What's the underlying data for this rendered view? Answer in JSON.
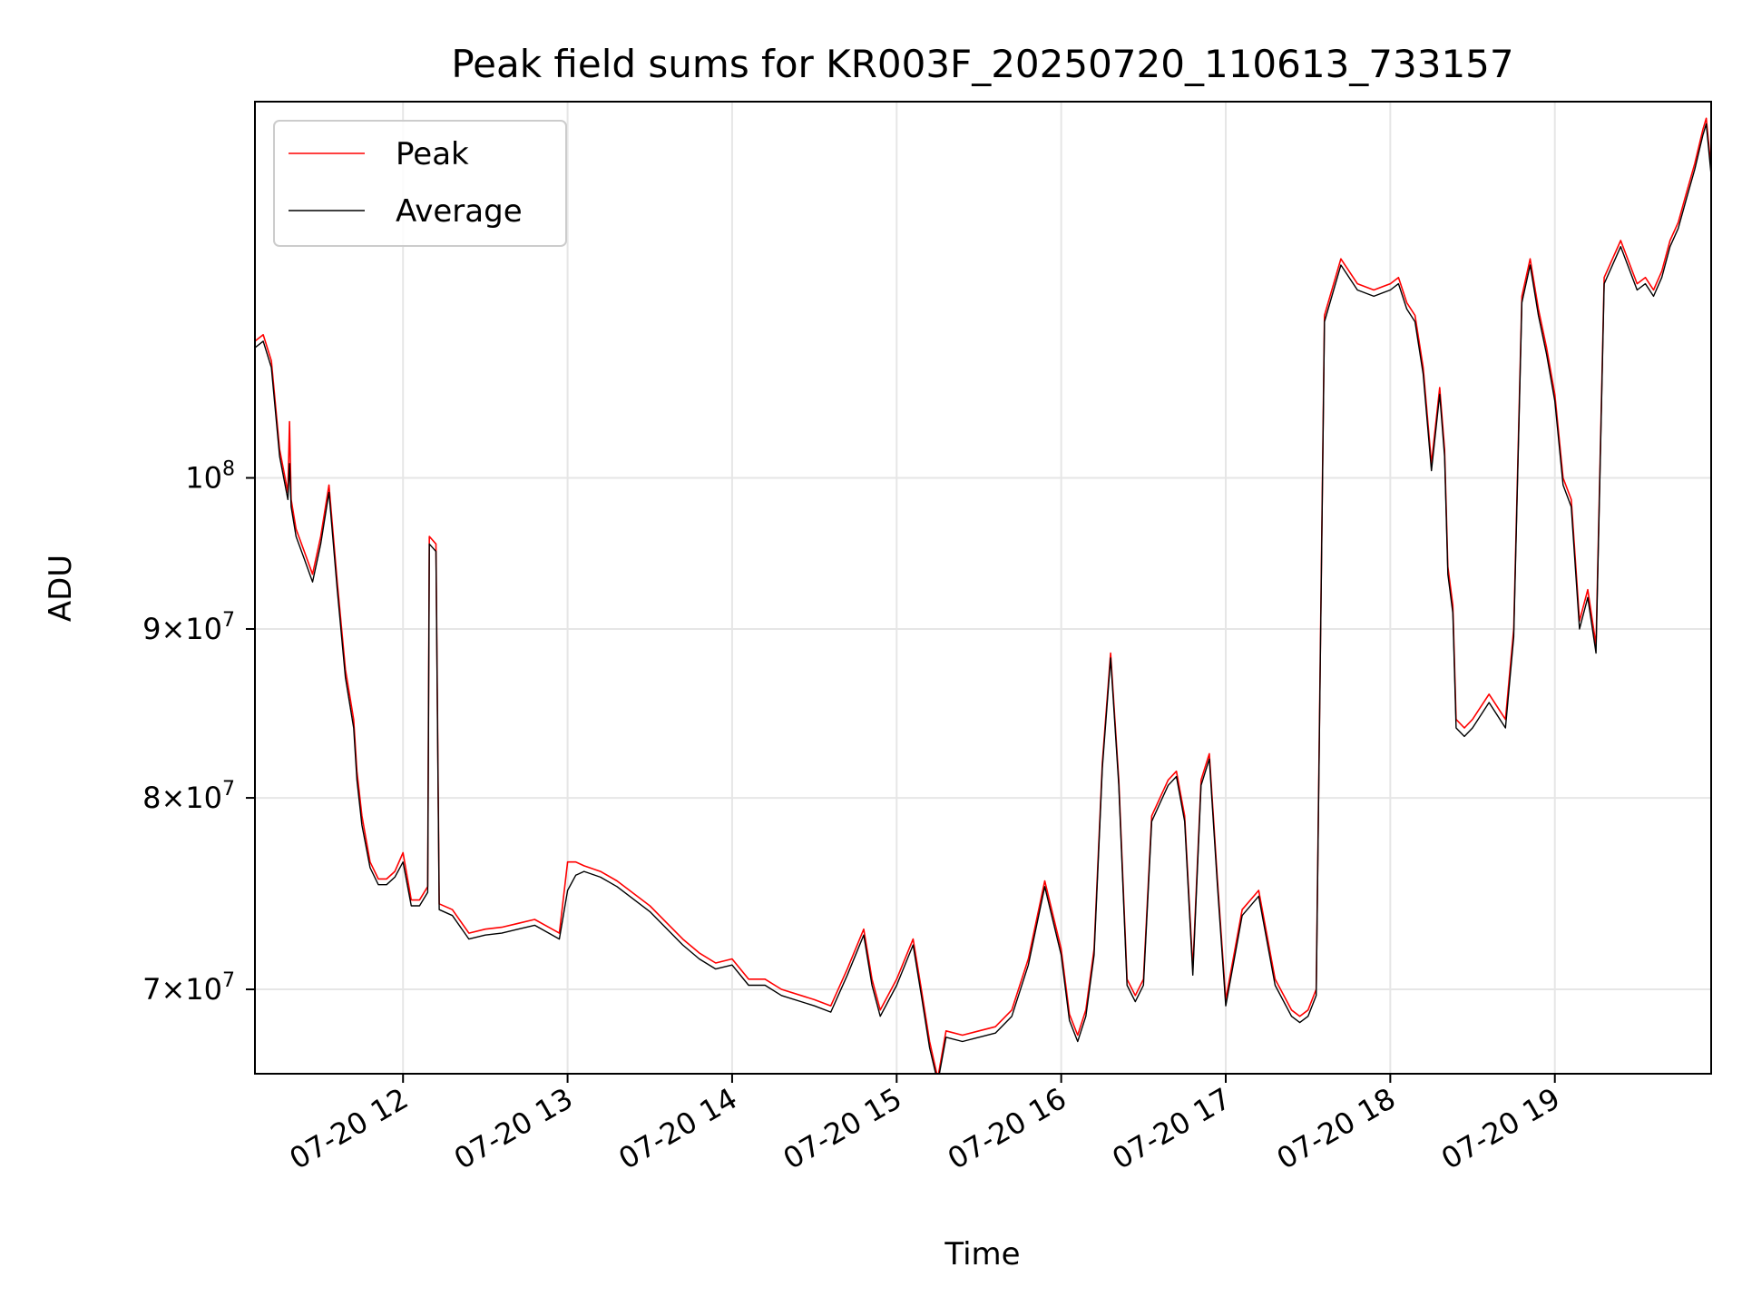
{
  "chart_data": {
    "type": "line",
    "title": "Peak field sums for KR003F_20250720_110613_733157",
    "xlabel": "Time",
    "ylabel": "ADU",
    "x_unit": "hours (07-20)",
    "xlim": [
      11.1,
      19.95
    ],
    "ylim": [
      66000000,
      130000000
    ],
    "yscale": "log",
    "grid": true,
    "legend_position": "top-left",
    "x_ticks": [
      {
        "value": 12,
        "label": "07-20 12"
      },
      {
        "value": 13,
        "label": "07-20 13"
      },
      {
        "value": 14,
        "label": "07-20 14"
      },
      {
        "value": 15,
        "label": "07-20 15"
      },
      {
        "value": 16,
        "label": "07-20 16"
      },
      {
        "value": 17,
        "label": "07-20 17"
      },
      {
        "value": 18,
        "label": "07-20 18"
      },
      {
        "value": 19,
        "label": "07-20 19"
      }
    ],
    "y_ticks": [
      {
        "value": 70000000,
        "mant": "7",
        "exp": "7"
      },
      {
        "value": 80000000,
        "mant": "8",
        "exp": "7"
      },
      {
        "value": 90000000,
        "mant": "9",
        "exp": "7"
      },
      {
        "value": 100000000,
        "mant": "",
        "exp": "8"
      }
    ],
    "series": [
      {
        "name": "Peak",
        "color": "#ff0000",
        "x": [
          11.1,
          11.15,
          11.2,
          11.25,
          11.3,
          11.31,
          11.32,
          11.35,
          11.4,
          11.45,
          11.5,
          11.55,
          11.6,
          11.65,
          11.7,
          11.72,
          11.75,
          11.8,
          11.85,
          11.9,
          11.95,
          12.0,
          12.05,
          12.1,
          12.15,
          12.16,
          12.2,
          12.22,
          12.3,
          12.4,
          12.5,
          12.6,
          12.7,
          12.8,
          12.95,
          13.0,
          13.05,
          13.1,
          13.2,
          13.3,
          13.5,
          13.7,
          13.8,
          13.9,
          14.0,
          14.1,
          14.2,
          14.3,
          14.5,
          14.6,
          14.7,
          14.8,
          14.85,
          14.9,
          15.0,
          15.1,
          15.15,
          15.2,
          15.25,
          15.3,
          15.4,
          15.5,
          15.6,
          15.7,
          15.8,
          15.9,
          16.0,
          16.05,
          16.1,
          16.15,
          16.2,
          16.25,
          16.3,
          16.35,
          16.4,
          16.45,
          16.5,
          16.55,
          16.6,
          16.65,
          16.7,
          16.75,
          16.8,
          16.85,
          16.9,
          16.95,
          17.0,
          17.1,
          17.2,
          17.3,
          17.4,
          17.45,
          17.5,
          17.55,
          17.6,
          17.7,
          17.8,
          17.9,
          18.0,
          18.05,
          18.1,
          18.15,
          18.2,
          18.25,
          18.3,
          18.33,
          18.35,
          18.38,
          18.4,
          18.45,
          18.5,
          18.6,
          18.7,
          18.75,
          18.8,
          18.85,
          18.9,
          18.95,
          19.0,
          19.05,
          19.1,
          19.15,
          19.2,
          19.25,
          19.3,
          19.4,
          19.5,
          19.55,
          19.6,
          19.65,
          19.7,
          19.75,
          19.8,
          19.85,
          19.9,
          19.92,
          19.95
        ],
        "values": [
          110000000,
          110500000,
          108500000,
          102000000,
          99000000,
          104000000,
          98500000,
          96500000,
          95000000,
          93500000,
          96000000,
          99500000,
          93000000,
          87500000,
          84500000,
          81500000,
          79000000,
          76500000,
          75600000,
          75600000,
          76000000,
          77000000,
          74500000,
          74500000,
          75200000,
          96000000,
          95500000,
          74300000,
          74000000,
          72800000,
          73000000,
          73100000,
          73300000,
          73500000,
          72800000,
          76500000,
          76500000,
          76300000,
          76000000,
          75500000,
          74200000,
          72500000,
          71800000,
          71300000,
          71500000,
          70500000,
          70500000,
          70000000,
          69500000,
          69200000,
          71000000,
          73000000,
          70500000,
          69000000,
          70500000,
          72500000,
          70000000,
          67500000,
          65800000,
          68000000,
          67800000,
          68000000,
          68200000,
          69000000,
          71500000,
          75500000,
          72000000,
          68800000,
          67800000,
          69000000,
          72000000,
          82000000,
          88500000,
          81000000,
          70500000,
          69700000,
          70500000,
          79000000,
          80000000,
          81000000,
          81500000,
          79000000,
          71000000,
          81000000,
          82500000,
          75500000,
          69500000,
          74000000,
          75000000,
          70500000,
          69000000,
          68700000,
          69000000,
          70000000,
          112000000,
          116500000,
          114500000,
          114000000,
          114500000,
          115000000,
          113000000,
          112000000,
          108000000,
          101000000,
          106500000,
          102000000,
          94000000,
          91500000,
          84500000,
          84000000,
          84500000,
          86000000,
          84500000,
          90000000,
          113500000,
          116500000,
          112500000,
          109500000,
          106000000,
          100000000,
          98500000,
          90500000,
          92500000,
          89000000,
          115000000,
          118000000,
          114500000,
          115000000,
          114000000,
          115500000,
          118000000,
          119500000,
          122000000,
          124500000,
          127500000,
          128500000,
          124000000
        ]
      },
      {
        "name": "Average",
        "color": "#000000",
        "x": [
          11.1,
          11.15,
          11.2,
          11.25,
          11.3,
          11.31,
          11.32,
          11.35,
          11.4,
          11.45,
          11.5,
          11.55,
          11.6,
          11.65,
          11.7,
          11.72,
          11.75,
          11.8,
          11.85,
          11.9,
          11.95,
          12.0,
          12.05,
          12.1,
          12.15,
          12.16,
          12.2,
          12.22,
          12.3,
          12.4,
          12.5,
          12.6,
          12.7,
          12.8,
          12.95,
          13.0,
          13.05,
          13.1,
          13.2,
          13.3,
          13.5,
          13.7,
          13.8,
          13.9,
          14.0,
          14.1,
          14.2,
          14.3,
          14.5,
          14.6,
          14.7,
          14.8,
          14.85,
          14.9,
          15.0,
          15.1,
          15.15,
          15.2,
          15.25,
          15.3,
          15.4,
          15.5,
          15.6,
          15.7,
          15.8,
          15.9,
          16.0,
          16.05,
          16.1,
          16.15,
          16.2,
          16.25,
          16.3,
          16.35,
          16.4,
          16.45,
          16.5,
          16.55,
          16.6,
          16.65,
          16.7,
          16.75,
          16.8,
          16.85,
          16.9,
          16.95,
          17.0,
          17.1,
          17.2,
          17.3,
          17.4,
          17.45,
          17.5,
          17.55,
          17.6,
          17.7,
          17.8,
          17.9,
          18.0,
          18.05,
          18.1,
          18.15,
          18.2,
          18.25,
          18.3,
          18.33,
          18.35,
          18.38,
          18.4,
          18.45,
          18.5,
          18.6,
          18.7,
          18.75,
          18.8,
          18.85,
          18.9,
          18.95,
          19.0,
          19.05,
          19.1,
          19.15,
          19.2,
          19.25,
          19.3,
          19.4,
          19.5,
          19.55,
          19.6,
          19.65,
          19.7,
          19.75,
          19.8,
          19.85,
          19.9,
          19.92,
          19.95
        ],
        "values": [
          109500000,
          110000000,
          108000000,
          101500000,
          98500000,
          101000000,
          98000000,
          96000000,
          94500000,
          93000000,
          95500000,
          99000000,
          92500000,
          87000000,
          84000000,
          81000000,
          78500000,
          76200000,
          75300000,
          75300000,
          75700000,
          76500000,
          74200000,
          74200000,
          74900000,
          95500000,
          95000000,
          74000000,
          73700000,
          72500000,
          72700000,
          72800000,
          73000000,
          73200000,
          72500000,
          75000000,
          75800000,
          76000000,
          75700000,
          75200000,
          73900000,
          72200000,
          71500000,
          71000000,
          71200000,
          70200000,
          70200000,
          69700000,
          69200000,
          68900000,
          70700000,
          72700000,
          70200000,
          68700000,
          70200000,
          72200000,
          69700000,
          67200000,
          65600000,
          67700000,
          67500000,
          67700000,
          67900000,
          68700000,
          71200000,
          75200000,
          71700000,
          68500000,
          67500000,
          68700000,
          71700000,
          81700000,
          88200000,
          80700000,
          70200000,
          69400000,
          70200000,
          78700000,
          79700000,
          80700000,
          81200000,
          78700000,
          70700000,
          80700000,
          82200000,
          75200000,
          69200000,
          73700000,
          74700000,
          70200000,
          68700000,
          68400000,
          68700000,
          69700000,
          111500000,
          116000000,
          114000000,
          113500000,
          114000000,
          114500000,
          112500000,
          111500000,
          107500000,
          100500000,
          106000000,
          101500000,
          93500000,
          91000000,
          84000000,
          83500000,
          84000000,
          85500000,
          84000000,
          89500000,
          113000000,
          116000000,
          112000000,
          109000000,
          105500000,
          99500000,
          98000000,
          90000000,
          92000000,
          88500000,
          114500000,
          117500000,
          114000000,
          114500000,
          113500000,
          115000000,
          117500000,
          119000000,
          121500000,
          124000000,
          127000000,
          128000000,
          123500000
        ]
      }
    ]
  }
}
